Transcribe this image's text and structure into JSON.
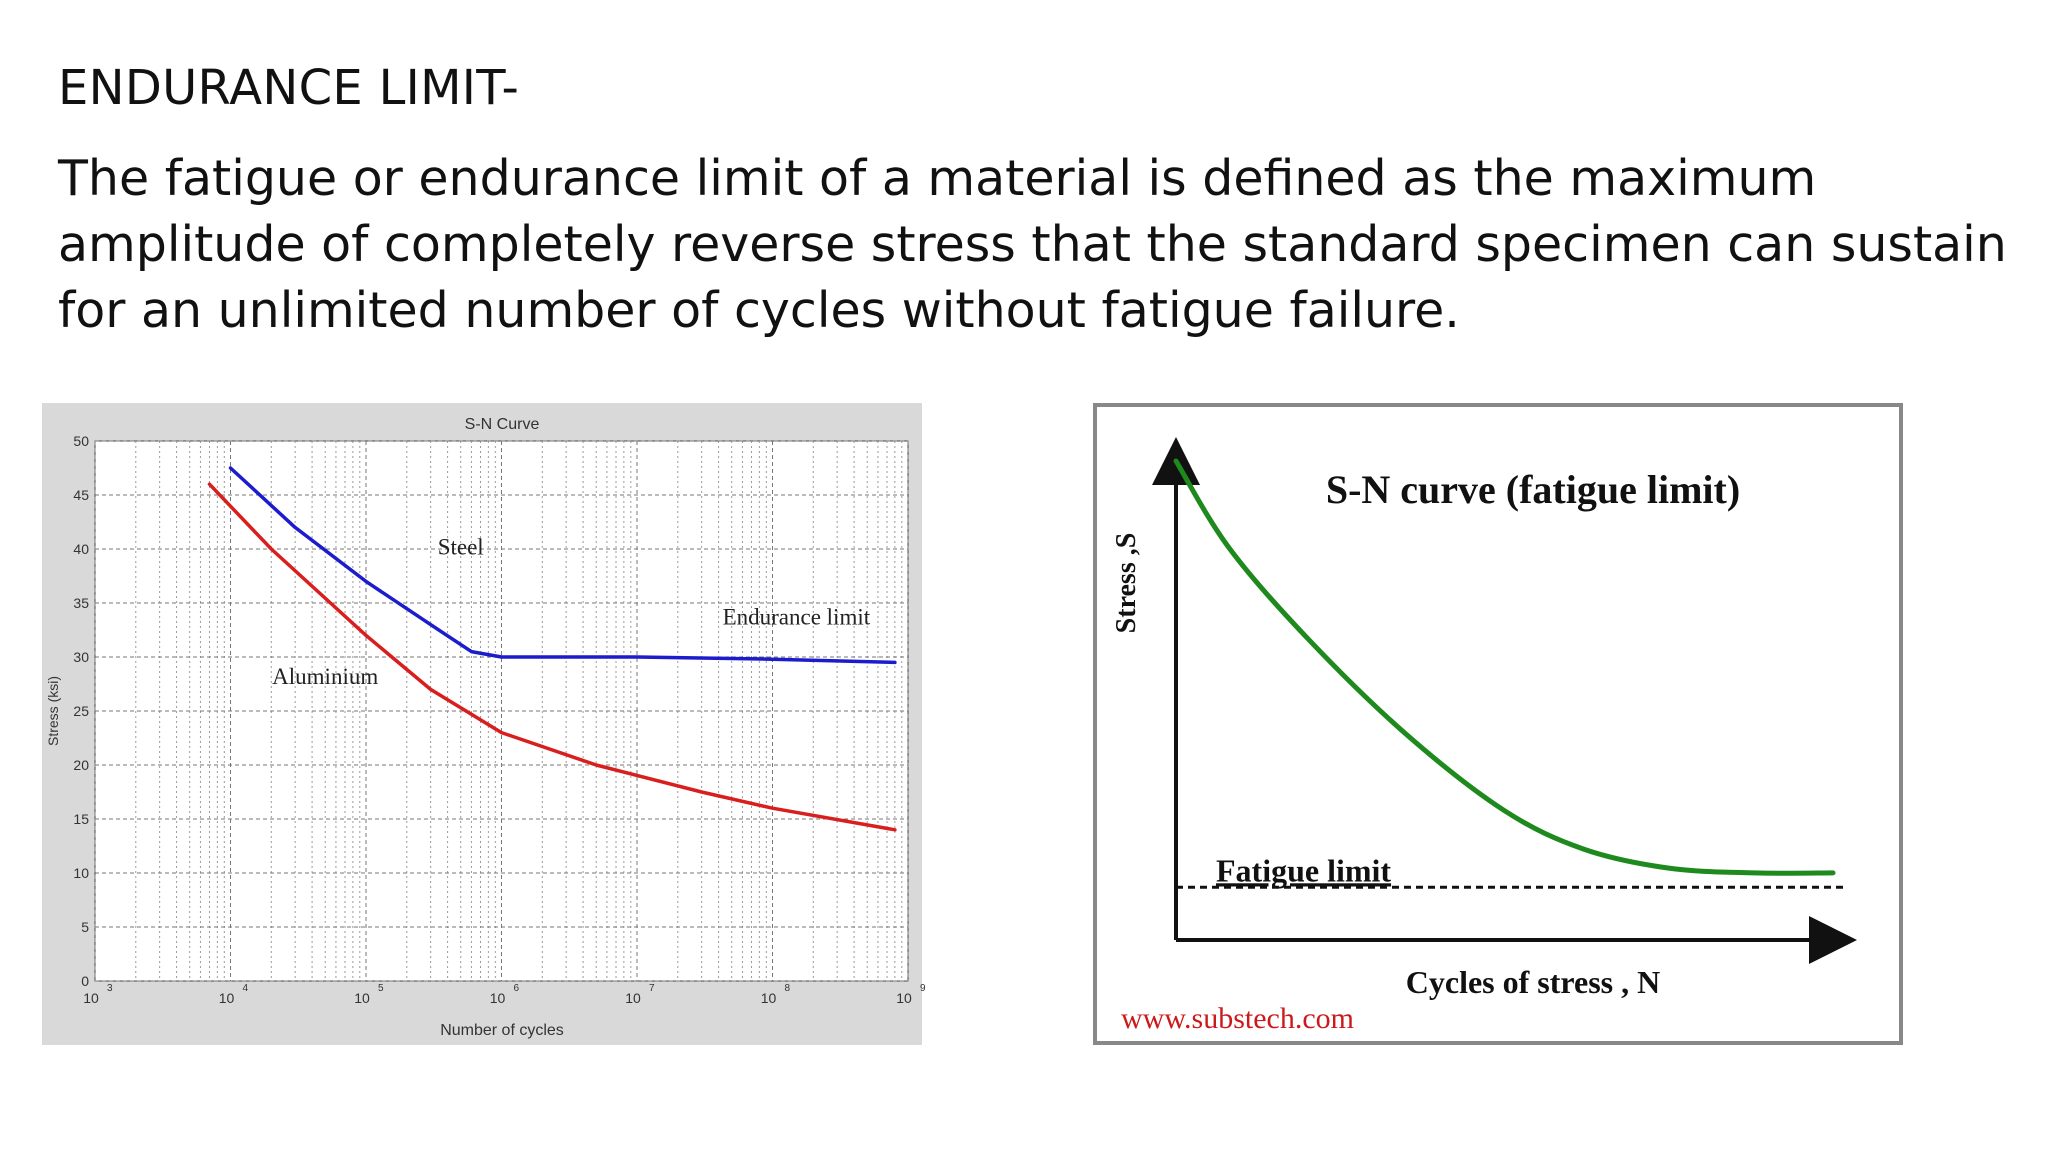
{
  "slide": {
    "heading": "ENDURANCE LIMIT-",
    "body": "The fatigue or endurance limit of a material is defined as the maximum amplitude of completely reverse stress that the standard specimen can sustain for an unlimited number of cycles without fatigue failure."
  },
  "chart_data": [
    {
      "type": "line",
      "title": "S-N Curve",
      "xlabel": "Number of cycles",
      "ylabel": "Stress (ksi)",
      "x_scale": "log",
      "xlim": [
        1000,
        1000000000
      ],
      "ylim": [
        0,
        50
      ],
      "x_ticks": [
        {
          "value": 1000,
          "base": "10",
          "exp": "3"
        },
        {
          "value": 10000,
          "base": "10",
          "exp": "4"
        },
        {
          "value": 100000,
          "base": "10",
          "exp": "5"
        },
        {
          "value": 1000000,
          "base": "10",
          "exp": "6"
        },
        {
          "value": 10000000,
          "base": "10",
          "exp": "7"
        },
        {
          "value": 100000000,
          "base": "10",
          "exp": "8"
        },
        {
          "value": 1000000000,
          "base": "10",
          "exp": "9"
        }
      ],
      "y_ticks": [
        0,
        5,
        10,
        15,
        20,
        25,
        30,
        35,
        40,
        45,
        50
      ],
      "grid": true,
      "series": [
        {
          "name": "Steel",
          "color": "#1c1ccc",
          "points": [
            [
              10000,
              47.5
            ],
            [
              30000,
              42
            ],
            [
              100000,
              37
            ],
            [
              300000,
              33
            ],
            [
              600000,
              30.5
            ],
            [
              1000000,
              30
            ],
            [
              10000000,
              30
            ],
            [
              100000000,
              29.8
            ],
            [
              800000000,
              29.5
            ]
          ]
        },
        {
          "name": "Aluminium",
          "color": "#d91e1e",
          "points": [
            [
              7000,
              46
            ],
            [
              20000,
              40
            ],
            [
              100000,
              32
            ],
            [
              300000,
              27
            ],
            [
              1000000,
              23
            ],
            [
              5000000,
              20
            ],
            [
              30000000,
              17.5
            ],
            [
              100000000,
              16
            ],
            [
              800000000,
              14
            ]
          ]
        }
      ],
      "annotations": [
        {
          "text": "Steel",
          "x": 500000,
          "y": 39.5
        },
        {
          "text": "Endurance limit",
          "x": 150000000,
          "y": 33
        },
        {
          "text": "Aluminium",
          "x": 50000,
          "y": 27.5
        }
      ]
    },
    {
      "type": "line",
      "title": "S-N curve (fatigue limit)",
      "xlabel": "Cycles of stress ,  N",
      "ylabel": "Stress ,S",
      "xlim": [
        0,
        100
      ],
      "ylim": [
        0,
        100
      ],
      "grid": false,
      "series": [
        {
          "name": "",
          "color": "#1e8a1e",
          "points": [
            [
              0,
              100
            ],
            [
              8,
              82
            ],
            [
              20,
              63
            ],
            [
              35,
              43
            ],
            [
              50,
              27
            ],
            [
              62,
              19
            ],
            [
              75,
              15
            ],
            [
              88,
              14
            ],
            [
              100,
              14
            ]
          ]
        }
      ],
      "reference_lines": [
        {
          "label": "Fatigue limit",
          "y": 11,
          "style": "dashed"
        }
      ],
      "credit": "www.substech.com"
    }
  ]
}
